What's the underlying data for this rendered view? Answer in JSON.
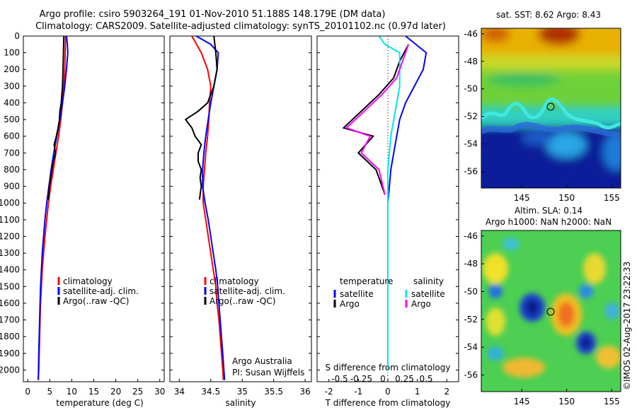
{
  "header": {
    "line1": "Argo profile: csiro 5903264_191 01-Nov-2010 51.188S 148.179E (DM data)",
    "line2": "Climatology: CARS2009. Satellite-adjusted climatology: synTS_20101102.nc (0.97d later)"
  },
  "credits": {
    "group": "Argo Australia",
    "pi": "PI: Susan Wijffels",
    "stamp": "©IMOS 02-Aug-2017 23:22:33"
  },
  "colors": {
    "climatology": "#ff0000",
    "satellite": "#0000ff",
    "argo": "#000000",
    "sal_satellite": "#00e5ee",
    "sal_argo": "#ff00ff"
  },
  "chart_data": [
    {
      "type": "line",
      "panel": "temperature",
      "xlabel": "temperature (deg C)",
      "ylabel": "",
      "xlim": [
        -1,
        31
      ],
      "xticks": [
        0,
        5,
        10,
        15,
        20,
        25,
        30
      ],
      "ylim": [
        2070,
        0
      ],
      "yticks": [
        0,
        100,
        200,
        300,
        400,
        500,
        600,
        700,
        800,
        900,
        1000,
        1100,
        1200,
        1300,
        1400,
        1500,
        1600,
        1700,
        1800,
        1900,
        2000
      ],
      "legend": [
        "climatology",
        "satellite-adj. clim.",
        "Argo(..raw -QC)"
      ],
      "series": [
        {
          "name": "climatology",
          "color": "#ff0000",
          "x": [
            8.6,
            8.5,
            8.4,
            8.2,
            7.9,
            7.5,
            7.0,
            6.4,
            5.8,
            5.2,
            4.7,
            4.3,
            3.9,
            3.6,
            3.3,
            3.1,
            2.9,
            2.8,
            2.7,
            2.6,
            2.5,
            2.4
          ],
          "y": [
            0,
            100,
            200,
            300,
            400,
            500,
            600,
            700,
            800,
            900,
            1000,
            1100,
            1200,
            1300,
            1400,
            1500,
            1600,
            1700,
            1800,
            1900,
            2000,
            2060
          ]
        },
        {
          "name": "satellite-adj. clim.",
          "color": "#0000ff",
          "x": [
            8.8,
            9.0,
            9.1,
            8.8,
            8.4,
            7.9,
            7.3,
            6.6,
            5.9,
            5.3,
            4.8,
            4.3,
            3.9,
            3.6,
            3.3,
            3.1,
            2.9,
            2.8,
            2.7,
            2.6,
            2.5,
            2.4
          ],
          "y": [
            0,
            50,
            100,
            200,
            300,
            400,
            500,
            600,
            700,
            800,
            900,
            1000,
            1100,
            1200,
            1300,
            1400,
            1500,
            1600,
            1700,
            1800,
            1900,
            2060
          ]
        },
        {
          "name": "Argo(..raw -QC)",
          "color": "#000000",
          "x": [
            8.2,
            8.1,
            8.0,
            7.9,
            7.6,
            7.3,
            7.2,
            6.9,
            6.5,
            6.0,
            6.3,
            5.8,
            5.5,
            5.2,
            4.9,
            4.7
          ],
          "y": [
            0,
            100,
            200,
            300,
            400,
            450,
            500,
            550,
            600,
            650,
            700,
            750,
            800,
            850,
            900,
            980
          ]
        }
      ]
    },
    {
      "type": "line",
      "panel": "salinity",
      "xlabel": "salinity",
      "xlim": [
        33.85,
        36.1
      ],
      "xticks": [
        34,
        34.5,
        35,
        35.5,
        36
      ],
      "ylim": [
        2070,
        0
      ],
      "legend": [
        "climatology",
        "satellite-adj. clim.",
        "Argo(..raw -QC)"
      ],
      "series": [
        {
          "name": "climatology",
          "color": "#ff0000",
          "x": [
            34.2,
            34.35,
            34.45,
            34.5,
            34.48,
            34.47,
            34.45,
            34.42,
            34.4,
            34.38,
            34.38,
            34.42,
            34.46,
            34.5,
            34.54,
            34.58,
            34.6,
            34.63,
            34.65,
            34.67,
            34.69,
            34.7
          ],
          "y": [
            0,
            100,
            200,
            300,
            400,
            500,
            600,
            700,
            800,
            900,
            1000,
            1100,
            1200,
            1300,
            1400,
            1500,
            1600,
            1700,
            1800,
            1900,
            2000,
            2060
          ]
        },
        {
          "name": "satellite-adj. clim.",
          "color": "#0000ff",
          "x": [
            34.27,
            34.5,
            34.62,
            34.6,
            34.55,
            34.5,
            34.46,
            34.42,
            34.39,
            34.37,
            34.37,
            34.41,
            34.46,
            34.5,
            34.54,
            34.58,
            34.61,
            34.63,
            34.65,
            34.67,
            34.69,
            34.72
          ],
          "y": [
            0,
            50,
            100,
            200,
            300,
            400,
            500,
            600,
            700,
            800,
            900,
            1000,
            1100,
            1200,
            1300,
            1400,
            1500,
            1600,
            1700,
            1800,
            1900,
            2060
          ]
        },
        {
          "name": "Argo(..raw -QC)",
          "color": "#000000",
          "x": [
            34.55,
            34.58,
            34.6,
            34.55,
            34.45,
            34.3,
            34.1,
            34.2,
            34.25,
            34.35,
            34.3,
            34.3,
            34.35,
            34.33,
            34.35,
            34.32
          ],
          "y": [
            0,
            100,
            200,
            300,
            400,
            450,
            500,
            550,
            600,
            650,
            700,
            750,
            800,
            850,
            900,
            980
          ]
        }
      ]
    },
    {
      "type": "line",
      "panel": "difference",
      "xlabel": "T difference from climatology",
      "xlabel2": "S difference from climatology",
      "xlim": [
        -2.4,
        2.4
      ],
      "xticks": [
        -2,
        -1,
        0,
        1,
        2
      ],
      "xticks2": [
        "-0.5",
        "-0.25",
        "0",
        "0.25",
        "0.5"
      ],
      "ylim": [
        2070,
        0
      ],
      "legend": {
        "temperature": [
          "satellite",
          "Argo"
        ],
        "salinity": [
          "satellite",
          "Argo"
        ]
      },
      "series": [
        {
          "name": "satellite",
          "group": "temperature",
          "color": "#0000ff",
          "x": [
            0.6,
            1.3,
            1.2,
            0.9,
            0.6,
            0.4,
            0.3,
            0.2,
            0.1,
            0.05,
            0.0,
            0.0,
            0.0,
            0.0,
            0.0,
            0.0
          ],
          "y": [
            0,
            100,
            200,
            300,
            400,
            500,
            600,
            700,
            800,
            900,
            1000,
            1200,
            1400,
            1600,
            1800,
            2000
          ]
        },
        {
          "name": "Argo",
          "group": "temperature",
          "color": "#000000",
          "x": [
            0.7,
            0.4,
            0.2,
            -0.3,
            -1.2,
            -1.5,
            -0.5,
            -1.0,
            -0.4,
            -0.2,
            -0.1
          ],
          "y": [
            50,
            150,
            250,
            350,
            500,
            550,
            600,
            700,
            800,
            900,
            950
          ]
        },
        {
          "name": "satellite",
          "group": "salinity",
          "color": "#00e5ee",
          "x": [
            -0.3,
            -0.1,
            0.4,
            0.4,
            0.3,
            0.2,
            0.1,
            0.05,
            0.0,
            0.0,
            0.0,
            0.0
          ],
          "y": [
            0,
            50,
            100,
            300,
            400,
            500,
            600,
            700,
            800,
            1000,
            1500,
            2000
          ]
        },
        {
          "name": "Argo",
          "group": "salinity",
          "color": "#ff00ff",
          "x": [
            0.7,
            0.5,
            0.3,
            -0.2,
            -1.1,
            -1.4,
            -0.6,
            -0.9,
            -0.3,
            -0.1
          ],
          "y": [
            50,
            150,
            250,
            350,
            500,
            550,
            600,
            700,
            800,
            950
          ]
        }
      ]
    },
    {
      "type": "heatmap",
      "panel": "sst-map",
      "title": "sat. SST: 8.62 Argo: 8.43",
      "xticks": [
        145,
        150,
        155
      ],
      "yticks": [
        -46,
        -48,
        -50,
        -52,
        -54,
        -56
      ],
      "xlim": [
        140.5,
        156
      ],
      "ylim": [
        -57.2,
        -45.6
      ],
      "marker": {
        "lon": 148.179,
        "lat": -51.188
      }
    },
    {
      "type": "heatmap",
      "panel": "sla-map",
      "title": "Altim. SLA: 0.14",
      "subtitle": "Argo h1000: NaN h2000: NaN",
      "xticks": [
        145,
        150,
        155
      ],
      "yticks": [
        -46,
        -48,
        -50,
        -52,
        -54,
        -56
      ],
      "xlim": [
        140.5,
        156
      ],
      "ylim": [
        -57.2,
        -45.6
      ],
      "marker": {
        "lon": 148.179,
        "lat": -51.188
      }
    }
  ]
}
